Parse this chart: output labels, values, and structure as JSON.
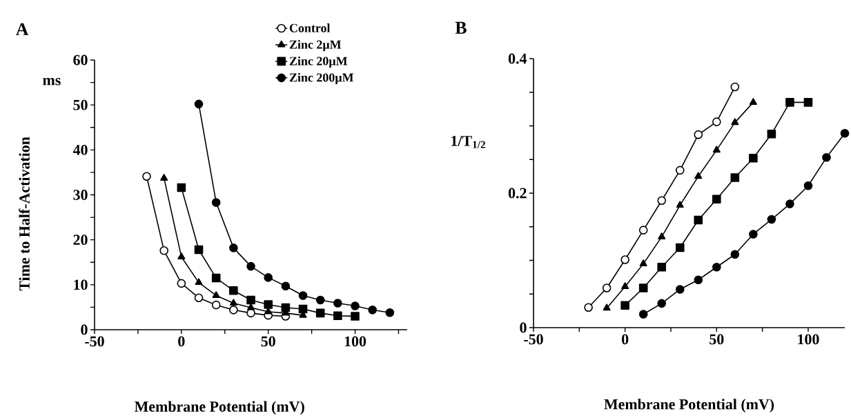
{
  "chart_data": [
    {
      "type": "line",
      "title": "A",
      "xlabel": "Membrane Potential  (mV)",
      "ylabel": "Time to Half-Activation",
      "annotations": [
        "ms"
      ],
      "legend": "top right",
      "line_style": "solid",
      "xlim": [
        -50,
        130
      ],
      "ylim": [
        0,
        60
      ],
      "xticks": [
        -50,
        {
          "value": -25,
          "label": null
        },
        0,
        {
          "value": 25,
          "label": null
        },
        50,
        {
          "value": 75,
          "label": null
        },
        100,
        {
          "value": 125,
          "label": null
        }
      ],
      "yticks": [
        0,
        {
          "value": 5,
          "label": null
        },
        10,
        {
          "value": 15,
          "label": null
        },
        20,
        {
          "value": 25,
          "label": null
        },
        30,
        {
          "value": 35,
          "label": null
        },
        40,
        {
          "value": 45,
          "label": null
        },
        50,
        {
          "value": 55,
          "label": null
        },
        60
      ],
      "series": [
        {
          "name": "Control",
          "color": "#ffffff",
          "marker": "circle",
          "x": [
            -20,
            -10,
            0,
            10,
            20,
            30,
            40,
            50,
            60
          ],
          "values": [
            34.1,
            17.6,
            10.3,
            7.1,
            5.5,
            4.4,
            3.7,
            3.2,
            3.0
          ]
        },
        {
          "name": "Zinc 2µM",
          "color": "#000000",
          "marker": "triangle",
          "x": [
            -10,
            0,
            10,
            20,
            30,
            40,
            50,
            60,
            70
          ],
          "values": [
            33.7,
            16.2,
            10.5,
            7.6,
            5.9,
            4.9,
            4.0,
            3.7,
            3.2
          ]
        },
        {
          "name": "Zinc 20µM",
          "color": "#000000",
          "marker": "square",
          "x": [
            0,
            10,
            20,
            30,
            40,
            50,
            60,
            70,
            80,
            90,
            100
          ],
          "values": [
            31.6,
            17.8,
            11.5,
            8.7,
            6.6,
            5.6,
            4.9,
            4.6,
            3.7,
            3.1,
            3.0
          ]
        },
        {
          "name": "Zinc 200µM",
          "color": "#000000",
          "marker": "circle",
          "x": [
            10,
            20,
            30,
            40,
            50,
            60,
            70,
            80,
            90,
            100,
            110,
            120
          ],
          "values": [
            50.2,
            28.3,
            18.2,
            14.1,
            11.6,
            9.7,
            7.6,
            6.6,
            5.9,
            5.3,
            4.4,
            3.8
          ]
        }
      ]
    },
    {
      "type": "line",
      "title": "B",
      "xlabel": "Membrane Potential  (mV)",
      "ylabel": "1/T$_{1/2}$",
      "line_style": "solid",
      "xlim": [
        -50,
        120
      ],
      "ylim": [
        0,
        0.4
      ],
      "xticks": [
        -50,
        {
          "value": -25,
          "label": null
        },
        0,
        {
          "value": 25,
          "label": null
        },
        50,
        {
          "value": 75,
          "label": null
        },
        100
      ],
      "yticks": [
        0,
        {
          "value": 0.05,
          "label": null
        },
        {
          "value": 0.1,
          "label": null
        },
        {
          "value": 0.15,
          "label": null
        },
        0.2,
        {
          "value": 0.25,
          "label": null
        },
        {
          "value": 0.3,
          "label": null
        },
        {
          "value": 0.35,
          "label": null
        },
        0.4
      ],
      "series": [
        {
          "color": "#ffffff",
          "marker": "circle",
          "x": [
            -20,
            -10,
            0,
            10,
            20,
            30,
            40,
            50,
            60
          ],
          "values": [
            0.03,
            0.059,
            0.101,
            0.145,
            0.189,
            0.234,
            0.287,
            0.306,
            0.358
          ]
        },
        {
          "color": "#000000",
          "marker": "triangle",
          "x": [
            -10,
            0,
            10,
            20,
            30,
            40,
            50,
            60,
            70
          ],
          "values": [
            0.029,
            0.061,
            0.095,
            0.135,
            0.182,
            0.225,
            0.264,
            0.305,
            0.335
          ]
        },
        {
          "color": "#000000",
          "marker": "square",
          "x": [
            0,
            10,
            20,
            30,
            40,
            50,
            60,
            70,
            80,
            90,
            100
          ],
          "values": [
            0.033,
            0.059,
            0.09,
            0.119,
            0.16,
            0.191,
            0.223,
            0.252,
            0.288,
            0.335,
            0.335
          ]
        },
        {
          "color": "#000000",
          "marker": "circle",
          "x": [
            10,
            20,
            30,
            40,
            50,
            60,
            70,
            80,
            90,
            100,
            110,
            120
          ],
          "values": [
            0.02,
            0.036,
            0.057,
            0.071,
            0.09,
            0.109,
            0.139,
            0.161,
            0.184,
            0.211,
            0.253,
            0.289
          ]
        }
      ]
    }
  ]
}
